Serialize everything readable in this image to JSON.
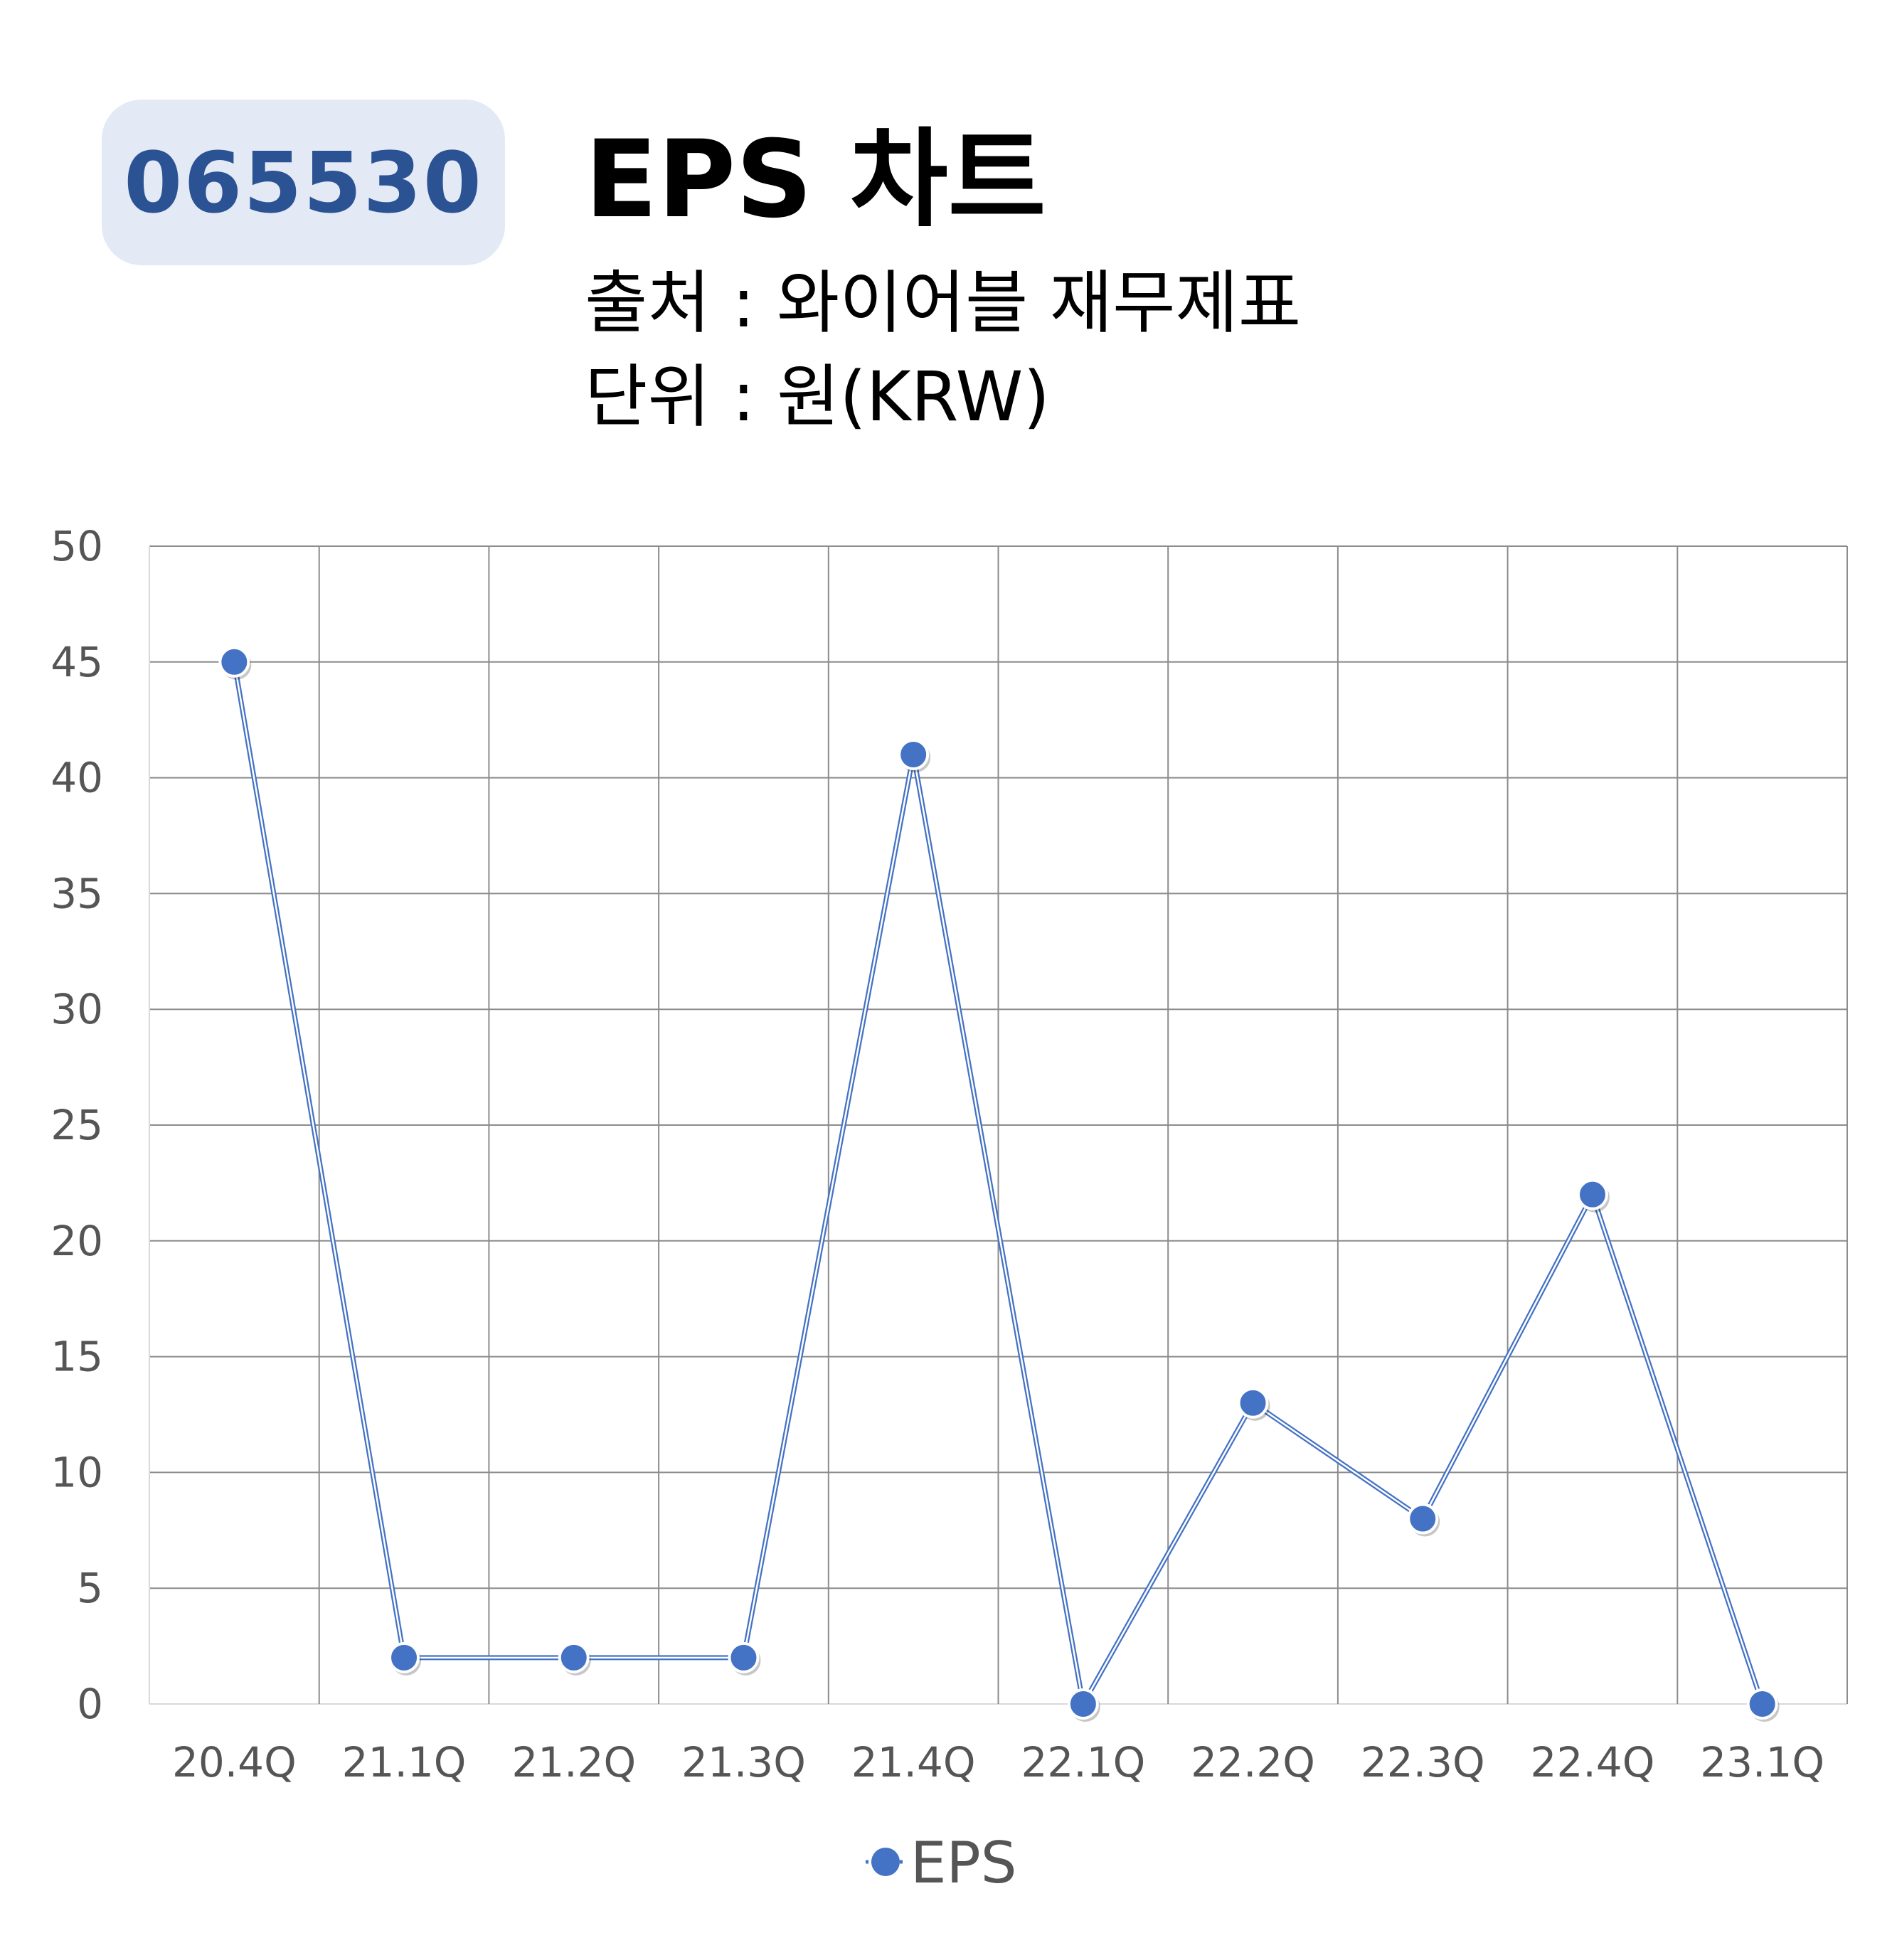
{
  "header": {
    "ticker": "065530",
    "title": "EPS 차트",
    "source": "출처 : 와이어블 재무제표",
    "unit": "단위 : 원(KRW)"
  },
  "colors": {
    "badge_bg": "#e3e9f5",
    "badge_text": "#2b5292",
    "series": "#4472c4",
    "grid": "#8c8c8c",
    "tick_text": "#555555"
  },
  "chart_data": {
    "type": "line",
    "categories": [
      "20.4Q",
      "21.1Q",
      "21.2Q",
      "21.3Q",
      "21.4Q",
      "22.1Q",
      "22.2Q",
      "22.3Q",
      "22.4Q",
      "23.1Q"
    ],
    "series": [
      {
        "name": "EPS",
        "values": [
          45,
          2,
          2,
          2,
          41,
          0,
          13,
          8,
          22,
          0
        ]
      }
    ],
    "y_ticks": [
      "0",
      "5",
      "10",
      "15",
      "20",
      "25",
      "30",
      "35",
      "40",
      "45",
      "50"
    ],
    "ylim": [
      0,
      50
    ],
    "grid": true,
    "legend_position": "bottom"
  }
}
